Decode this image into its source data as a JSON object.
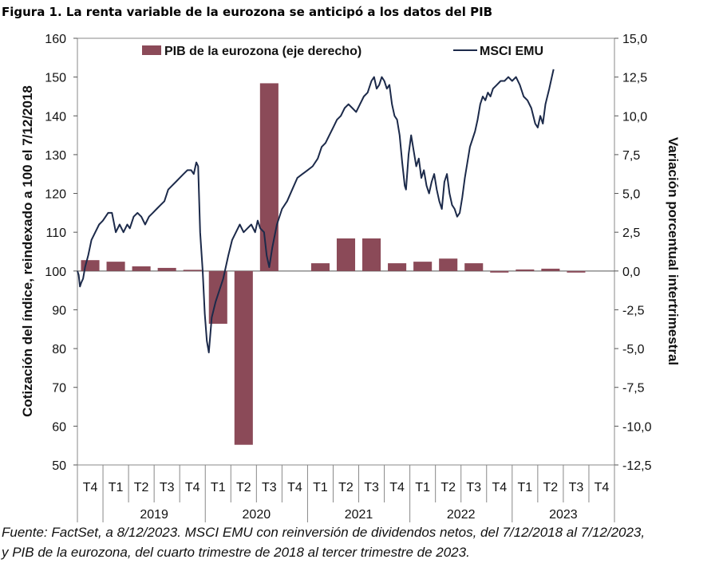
{
  "title": "Figura 1. La renta variable de la eurozona se anticipó a los datos del PIB",
  "source": {
    "line1": "Fuente: FactSet, a 8/12/2023. MSCI EMU con reinversión de dividendos netos, del 7/12/2018 al 7/12/2023,",
    "line2": "y PIB de la eurozona, del cuarto trimestre de 2018 al tercer trimestre de 2023."
  },
  "colors": {
    "bar": "#8b4a58",
    "line": "#1c2a4a",
    "axis": "#555555"
  },
  "chart_data": {
    "type": "bar+line",
    "legend": [
      "PIB de la eurozona (eje derecho)",
      "MSCI EMU"
    ],
    "legend_position": "top",
    "y_left": {
      "label": "Cotización del índice, reindexado a 100 el 7/12/2018",
      "range": [
        50,
        160
      ],
      "ticks": [
        "50",
        "60",
        "70",
        "80",
        "90",
        "100",
        "110",
        "120",
        "130",
        "140",
        "150",
        "160"
      ]
    },
    "y_right": {
      "label": "Variación porcentual intertrimestral",
      "range": [
        -12.5,
        15
      ],
      "ticks": [
        "-12,5",
        "-10,0",
        "-7,5",
        "-5,0",
        "-2,5",
        "0,0",
        "2,5",
        "5,0",
        "7,5",
        "10,0",
        "12,5",
        "15,0"
      ]
    },
    "quarters": [
      "T4",
      "T1",
      "T2",
      "T3",
      "T4",
      "T1",
      "T2",
      "T3",
      "T4",
      "T1",
      "T2",
      "T3",
      "T4",
      "T1",
      "T2",
      "T3",
      "T4",
      "T1",
      "T2",
      "T3",
      "T4"
    ],
    "years": [
      {
        "label": "2019",
        "from": 1,
        "to": 4
      },
      {
        "label": "2020",
        "from": 5,
        "to": 8
      },
      {
        "label": "2021",
        "from": 9,
        "to": 12
      },
      {
        "label": "2022",
        "from": 13,
        "to": 16
      },
      {
        "label": "2023",
        "from": 17,
        "to": 20
      }
    ],
    "gdp_series": {
      "name": "PIB de la eurozona (eje derecho)",
      "values": [
        0.7,
        0.6,
        0.3,
        0.2,
        0.05,
        -3.4,
        -11.2,
        12.1,
        null,
        0.5,
        2.1,
        2.1,
        0.5,
        0.6,
        0.8,
        0.5,
        -0.1,
        0.1,
        0.15,
        -0.1,
        null
      ]
    },
    "msci_series": {
      "name": "MSCI EMU",
      "points": [
        [
          0.0,
          100
        ],
        [
          0.05,
          99
        ],
        [
          0.1,
          96
        ],
        [
          0.15,
          97
        ],
        [
          0.22,
          98
        ],
        [
          0.3,
          101
        ],
        [
          0.42,
          104
        ],
        [
          0.55,
          108
        ],
        [
          0.7,
          110
        ],
        [
          0.85,
          112
        ],
        [
          1.0,
          113
        ],
        [
          1.1,
          114
        ],
        [
          1.2,
          115
        ],
        [
          1.35,
          115
        ],
        [
          1.5,
          110
        ],
        [
          1.65,
          112
        ],
        [
          1.8,
          110
        ],
        [
          1.95,
          112
        ],
        [
          2.05,
          111
        ],
        [
          2.2,
          114
        ],
        [
          2.35,
          115
        ],
        [
          2.5,
          114
        ],
        [
          2.65,
          112
        ],
        [
          2.8,
          114
        ],
        [
          2.95,
          115
        ],
        [
          3.1,
          116
        ],
        [
          3.25,
          117
        ],
        [
          3.4,
          118
        ],
        [
          3.55,
          121
        ],
        [
          3.7,
          122
        ],
        [
          3.85,
          123
        ],
        [
          4.0,
          124
        ],
        [
          4.15,
          125
        ],
        [
          4.3,
          126
        ],
        [
          4.45,
          126
        ],
        [
          4.55,
          125
        ],
        [
          4.65,
          128
        ],
        [
          4.72,
          127
        ],
        [
          4.8,
          110
        ],
        [
          4.9,
          100
        ],
        [
          4.98,
          89
        ],
        [
          5.06,
          82
        ],
        [
          5.14,
          79
        ],
        [
          5.25,
          88
        ],
        [
          5.4,
          92
        ],
        [
          5.55,
          95
        ],
        [
          5.7,
          98
        ],
        [
          5.9,
          104
        ],
        [
          6.05,
          108
        ],
        [
          6.2,
          110
        ],
        [
          6.35,
          112
        ],
        [
          6.5,
          110
        ],
        [
          6.65,
          111
        ],
        [
          6.8,
          112
        ],
        [
          6.95,
          110
        ],
        [
          7.05,
          113
        ],
        [
          7.15,
          111
        ],
        [
          7.3,
          110
        ],
        [
          7.4,
          104
        ],
        [
          7.5,
          101
        ],
        [
          7.62,
          106
        ],
        [
          7.8,
          112
        ],
        [
          8.0,
          116
        ],
        [
          8.2,
          118
        ],
        [
          8.4,
          121
        ],
        [
          8.6,
          124
        ],
        [
          8.8,
          125
        ],
        [
          9.0,
          126
        ],
        [
          9.2,
          127
        ],
        [
          9.4,
          129
        ],
        [
          9.55,
          132
        ],
        [
          9.7,
          133
        ],
        [
          9.85,
          135
        ],
        [
          10.0,
          137
        ],
        [
          10.15,
          139
        ],
        [
          10.3,
          140
        ],
        [
          10.45,
          142
        ],
        [
          10.6,
          143
        ],
        [
          10.75,
          142
        ],
        [
          10.9,
          141
        ],
        [
          11.05,
          143
        ],
        [
          11.2,
          145
        ],
        [
          11.35,
          146
        ],
        [
          11.5,
          149
        ],
        [
          11.6,
          150
        ],
        [
          11.7,
          147
        ],
        [
          11.8,
          148
        ],
        [
          11.9,
          150
        ],
        [
          12.0,
          149
        ],
        [
          12.1,
          147
        ],
        [
          12.2,
          148
        ],
        [
          12.3,
          143
        ],
        [
          12.4,
          140
        ],
        [
          12.5,
          139
        ],
        [
          12.6,
          135
        ],
        [
          12.7,
          128
        ],
        [
          12.8,
          122
        ],
        [
          12.85,
          121
        ],
        [
          12.95,
          130
        ],
        [
          13.05,
          135
        ],
        [
          13.15,
          131
        ],
        [
          13.25,
          127
        ],
        [
          13.35,
          129
        ],
        [
          13.45,
          124
        ],
        [
          13.55,
          126
        ],
        [
          13.65,
          122
        ],
        [
          13.75,
          120
        ],
        [
          13.85,
          123
        ],
        [
          13.95,
          125
        ],
        [
          14.05,
          121
        ],
        [
          14.15,
          118
        ],
        [
          14.25,
          116
        ],
        [
          14.35,
          123
        ],
        [
          14.45,
          125
        ],
        [
          14.55,
          120
        ],
        [
          14.65,
          117
        ],
        [
          14.75,
          116
        ],
        [
          14.85,
          114
        ],
        [
          14.95,
          115
        ],
        [
          15.05,
          119
        ],
        [
          15.15,
          124
        ],
        [
          15.25,
          128
        ],
        [
          15.35,
          132
        ],
        [
          15.45,
          134
        ],
        [
          15.55,
          136
        ],
        [
          15.65,
          139
        ],
        [
          15.75,
          143
        ],
        [
          15.85,
          145
        ],
        [
          15.95,
          144
        ],
        [
          16.05,
          146
        ],
        [
          16.15,
          145
        ],
        [
          16.25,
          147
        ],
        [
          16.4,
          148
        ],
        [
          16.55,
          149
        ],
        [
          16.7,
          149
        ],
        [
          16.85,
          150
        ],
        [
          17.0,
          149
        ],
        [
          17.15,
          150
        ],
        [
          17.3,
          148
        ],
        [
          17.45,
          145
        ],
        [
          17.6,
          144
        ],
        [
          17.75,
          142
        ],
        [
          17.9,
          138
        ],
        [
          18.0,
          137
        ],
        [
          18.1,
          140
        ],
        [
          18.2,
          138
        ],
        [
          18.3,
          143
        ],
        [
          18.45,
          147
        ],
        [
          18.55,
          150
        ],
        [
          18.62,
          152
        ]
      ]
    }
  }
}
